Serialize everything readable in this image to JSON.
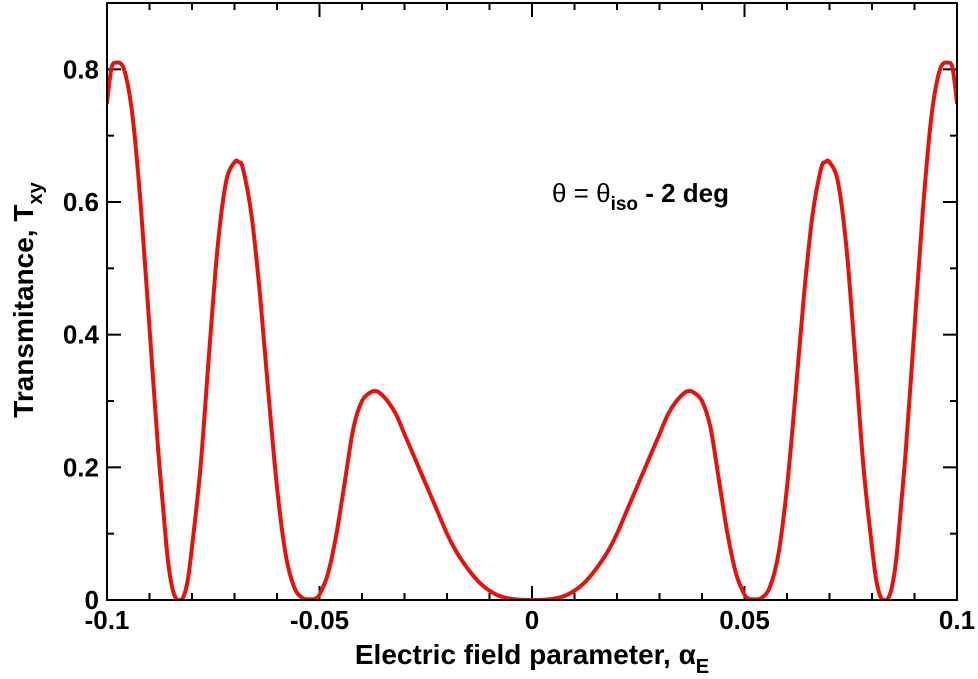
{
  "chart_data": {
    "type": "line",
    "xlabel": "Electric field parameter, α",
    "xlabel_sub": "E",
    "ylabel": "Transmitance, T",
    "ylabel_sub": "xy",
    "annotation": {
      "prefix": "θ = θ",
      "sub": "iso",
      "suffix": " - 2 deg"
    },
    "xlim": [
      -0.1,
      0.1
    ],
    "ylim": [
      0,
      0.9
    ],
    "x_ticks": [
      -0.1,
      -0.05,
      0,
      0.05,
      0.1
    ],
    "x_tick_labels": [
      "-0.1",
      "-0.05",
      "0",
      "0.05",
      "0.1"
    ],
    "y_ticks": [
      0,
      0.2,
      0.4,
      0.6,
      0.8
    ],
    "y_tick_labels": [
      "0",
      "0.2",
      "0.4",
      "0.6",
      "0.8"
    ],
    "grid": false,
    "line_color": "#e8120c",
    "series": [
      {
        "x": [
          -0.1,
          -0.099,
          -0.098,
          -0.096,
          -0.094,
          -0.092,
          -0.09,
          -0.088,
          -0.086,
          -0.085,
          -0.084,
          -0.083,
          -0.082,
          -0.081,
          -0.08,
          -0.078,
          -0.076,
          -0.074,
          -0.072,
          -0.07,
          -0.069,
          -0.068,
          -0.066,
          -0.064,
          -0.062,
          -0.06,
          -0.058,
          -0.056,
          -0.054,
          -0.052,
          -0.051,
          -0.05,
          -0.048,
          -0.046,
          -0.044,
          -0.042,
          -0.04,
          -0.038,
          -0.037,
          -0.036,
          -0.034,
          -0.032,
          -0.03,
          -0.028,
          -0.026,
          -0.024,
          -0.022,
          -0.02,
          -0.018,
          -0.016,
          -0.014,
          -0.012,
          -0.01,
          -0.008,
          -0.006,
          -0.004,
          -0.002,
          0,
          0.002,
          0.004,
          0.006,
          0.008,
          0.01,
          0.012,
          0.014,
          0.016,
          0.018,
          0.02,
          0.022,
          0.024,
          0.026,
          0.028,
          0.03,
          0.032,
          0.034,
          0.036,
          0.037,
          0.038,
          0.04,
          0.042,
          0.044,
          0.046,
          0.048,
          0.05,
          0.051,
          0.052,
          0.054,
          0.056,
          0.058,
          0.06,
          0.062,
          0.064,
          0.066,
          0.068,
          0.069,
          0.07,
          0.072,
          0.074,
          0.076,
          0.078,
          0.08,
          0.081,
          0.082,
          0.083,
          0.084,
          0.085,
          0.086,
          0.088,
          0.09,
          0.092,
          0.094,
          0.096,
          0.098,
          0.099,
          0.1
        ],
        "y": [
          0.75,
          0.8,
          0.81,
          0.8,
          0.73,
          0.59,
          0.41,
          0.23,
          0.08,
          0.03,
          0.005,
          0.0,
          0.005,
          0.03,
          0.08,
          0.2,
          0.37,
          0.53,
          0.63,
          0.66,
          0.66,
          0.65,
          0.58,
          0.46,
          0.31,
          0.17,
          0.07,
          0.02,
          0.003,
          0.001,
          0.002,
          0.008,
          0.04,
          0.1,
          0.18,
          0.26,
          0.3,
          0.313,
          0.315,
          0.313,
          0.3,
          0.28,
          0.25,
          0.22,
          0.19,
          0.16,
          0.13,
          0.1,
          0.075,
          0.055,
          0.038,
          0.024,
          0.014,
          0.007,
          0.003,
          0.001,
          0.0,
          0.0,
          0.0,
          0.001,
          0.003,
          0.007,
          0.014,
          0.024,
          0.038,
          0.055,
          0.075,
          0.1,
          0.13,
          0.16,
          0.19,
          0.22,
          0.25,
          0.28,
          0.3,
          0.313,
          0.315,
          0.313,
          0.3,
          0.26,
          0.18,
          0.1,
          0.04,
          0.008,
          0.002,
          0.001,
          0.003,
          0.02,
          0.07,
          0.17,
          0.31,
          0.46,
          0.58,
          0.65,
          0.66,
          0.66,
          0.63,
          0.53,
          0.37,
          0.2,
          0.08,
          0.03,
          0.005,
          0.0,
          0.005,
          0.03,
          0.08,
          0.23,
          0.41,
          0.59,
          0.73,
          0.8,
          0.81,
          0.8,
          0.75
        ]
      }
    ]
  }
}
